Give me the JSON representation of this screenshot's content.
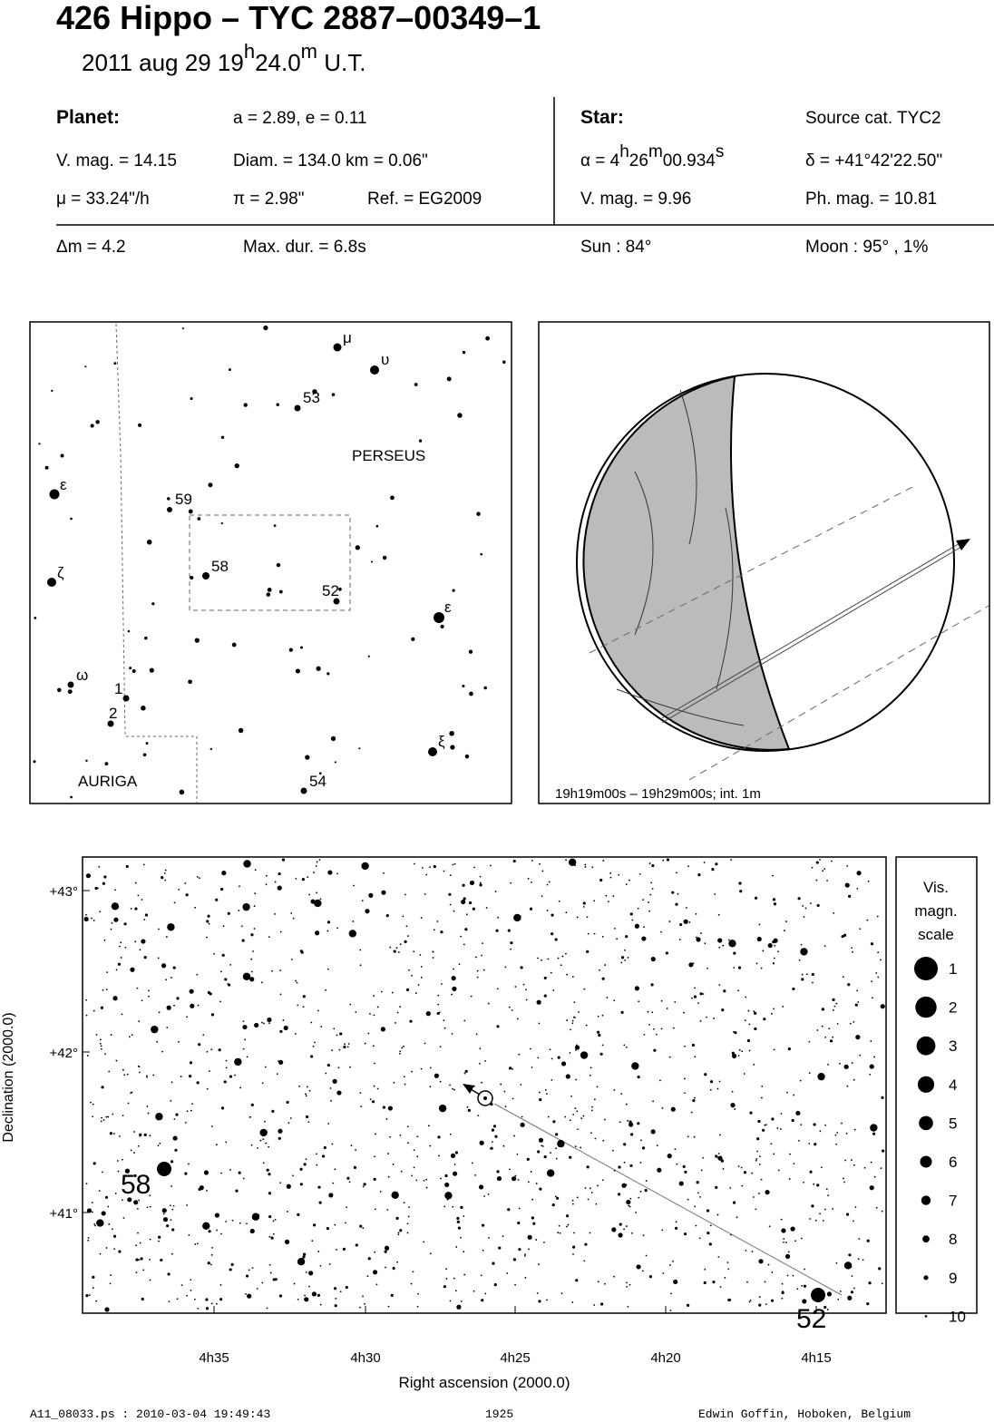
{
  "header": {
    "title": "426 Hippo  –  TYC 2887–00349–1",
    "date": [
      "2011 aug 29  19",
      "h",
      "24.0",
      "m",
      " U.T."
    ]
  },
  "planet": {
    "label": "Planet:",
    "orbit": "a = 2.89, e = 0.11",
    "vmag": "V. mag. = 14.15",
    "diam": "Diam. = 134.0 km = 0.06\"",
    "mu": "μ =  33.24\"/h",
    "pi": "π =  2.98\"",
    "ref": "Ref. = EG2009"
  },
  "star": {
    "label": "Star:",
    "source": "Source cat.  TYC2",
    "alpha": [
      "α =  4",
      "h",
      "26",
      "m",
      "00.934",
      "s"
    ],
    "delta": "δ = +41°42'22.50\"",
    "vmag": "V. mag. =  9.96",
    "phmag": "Ph. mag. = 10.81"
  },
  "summary": {
    "dm": "Δm = 4.2",
    "maxdur": "Max. dur. = 6.8s",
    "sun": "Sun :  84°",
    "moon": "Moon :  95° ,  1%"
  },
  "finder": {
    "labels": [
      "μ",
      "υ",
      "53",
      "PERSEUS",
      "ε",
      "59",
      "58",
      "52",
      "ζ",
      "ε",
      "ω",
      "1",
      "2",
      "ξ",
      "AURIGA",
      "54"
    ]
  },
  "globe": {
    "caption": "19h19m00s – 19h29m00s; int.  1m"
  },
  "starmap": {
    "yticks": [
      "+43°",
      "+42°",
      "+41°"
    ],
    "xticks": [
      "4h35",
      "4h30",
      "4h25",
      "4h20",
      "4h15"
    ],
    "xlabel": "Right ascension (2000.0)",
    "ylabel": "Declination (2000.0)",
    "star_labels": [
      "58",
      "52"
    ],
    "scale_title": [
      "Vis.",
      "magn.",
      "scale"
    ],
    "scale": [
      1,
      2,
      3,
      4,
      5,
      6,
      7,
      8,
      9,
      10
    ]
  },
  "footer": {
    "file": "A11_08033.ps : 2010-03-04 19:49:43",
    "number": "1925",
    "author": "Edwin Goffin, Hoboken, Belgium"
  }
}
